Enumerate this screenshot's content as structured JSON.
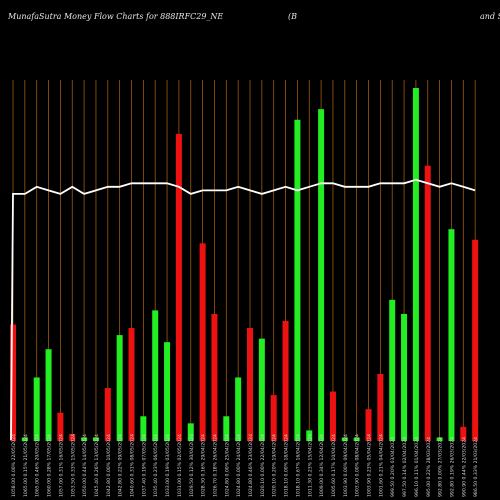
{
  "header": {
    "title": "MunafaSutra  Money Flow  Charts for 888IRFC29_NE",
    "middle": "(B",
    "right": "and S"
  },
  "chart_data": {
    "type": "bar",
    "title": "MunafaSutra  Money Flow  Charts for 888IRFC29_NE",
    "xlabel": "",
    "ylabel": "",
    "ylim": [
      0,
      100
    ],
    "grid": true,
    "colors": {
      "up": "#22ee22",
      "down": "#ee1111",
      "line": "#ffffff",
      "grid": "#a05a10",
      "background": "#000000"
    },
    "bars": [
      {
        "date": "1058.00 0.00% 22/05/2024",
        "value": 33,
        "color": "down"
      },
      {
        "date": "1065.00 0.15% 21/05/2024",
        "value": 1,
        "color": "up"
      },
      {
        "date": "1065.00 0.46% 20/05/2024",
        "value": 18,
        "color": "up"
      },
      {
        "date": "1060.00 0.28% 17/05/2024",
        "value": 26,
        "color": "up"
      },
      {
        "date": "1057.00 0.31% 16/05/2024",
        "value": 8,
        "color": "down"
      },
      {
        "date": "1053.50 0.33% 15/05/2024",
        "value": 2,
        "color": "down"
      },
      {
        "date": "1050.00 0.44% 14/05/2024",
        "value": 1,
        "color": "up"
      },
      {
        "date": "1045.40 0.26% 13/05/2024",
        "value": 1,
        "color": "up"
      },
      {
        "date": "1042.80 0.00% 10/05/2024",
        "value": 15,
        "color": "down"
      },
      {
        "date": "1042.80 0.22% 09/05/2024",
        "value": 30,
        "color": "up"
      },
      {
        "date": "1040.60 0.31% 08/05/2024",
        "value": 32,
        "color": "down"
      },
      {
        "date": "1037.40 0.19% 07/05/2024",
        "value": 7,
        "color": "up"
      },
      {
        "date": "1035.40 0.23% 06/05/2024",
        "value": 37,
        "color": "up"
      },
      {
        "date": "1033.00 0.19% 03/05/2024",
        "value": 28,
        "color": "up"
      },
      {
        "date": "1031.00 0.15% 02/05/2024",
        "value": 87,
        "color": "down"
      },
      {
        "date": "1029.50 0.12% 30/04/2024",
        "value": 5,
        "color": "up"
      },
      {
        "date": "1028.30 0.16% 29/04/2024",
        "value": 56,
        "color": "down"
      },
      {
        "date": "1026.70 0.18% 26/04/2024",
        "value": 36,
        "color": "down"
      },
      {
        "date": "1024.80 0.00% 25/04/2024",
        "value": 7,
        "color": "up"
      },
      {
        "date": "1024.80 0.00% 24/04/2024",
        "value": 18,
        "color": "up"
      },
      {
        "date": "1024.80 0.46% 23/04/2024",
        "value": 32,
        "color": "down"
      },
      {
        "date": "1020.10 0.00% 22/04/2024",
        "value": 29,
        "color": "up"
      },
      {
        "date": "1020.10 0.20% 19/04/2024",
        "value": 13,
        "color": "down"
      },
      {
        "date": "1018.10 0.00% 18/04/2024",
        "value": 34,
        "color": "down"
      },
      {
        "date": "1018.10 0.67% 16/04/2024",
        "value": 91,
        "color": "up"
      },
      {
        "date": "1011.30 0.23% 15/04/2024",
        "value": 3,
        "color": "up"
      },
      {
        "date": "1009.00 0.34% 12/04/2024",
        "value": 94,
        "color": "up"
      },
      {
        "date": "1005.60 0.17% 10/04/2024",
        "value": 14,
        "color": "down"
      },
      {
        "date": "1003.90 0.00% 09/04/2024",
        "value": 1,
        "color": "up"
      },
      {
        "date": "1003.90 0.00% 08/04/2024",
        "value": 1,
        "color": "up"
      },
      {
        "date": "1003.90 0.23% 05/04/2024",
        "value": 9,
        "color": "down"
      },
      {
        "date": "1001.60 0.21% 04/04/2024",
        "value": 19,
        "color": "down"
      },
      {
        "date": "999.50 0.20% 03/04/2024",
        "value": 40,
        "color": "up"
      },
      {
        "date": "997.50 0.14% 02/04/2024",
        "value": 36,
        "color": "up"
      },
      {
        "date": "996.10 0.11% 01/04/2024",
        "value": 100,
        "color": "up"
      },
      {
        "date": "995.00 0.22% 28/03/2024",
        "value": 78,
        "color": "down"
      },
      {
        "date": "992.80 0.00% 27/03/2024",
        "value": 1,
        "color": "up"
      },
      {
        "date": "992.80 0.19% 26/03/2024",
        "value": 60,
        "color": "up"
      },
      {
        "date": "990.90 0.44% 22/03/2024",
        "value": 4,
        "color": "down"
      },
      {
        "date": "986.50 0.33% 21/03/2024",
        "value": 57,
        "color": "down"
      }
    ],
    "line": [
      70,
      70,
      72,
      71,
      70,
      72,
      70,
      71,
      72,
      72,
      73,
      73,
      73,
      73,
      72,
      70,
      71,
      71,
      71,
      72,
      71,
      70,
      71,
      72,
      71,
      72,
      73,
      73,
      72,
      72,
      72,
      73,
      73,
      73,
      74,
      73,
      72,
      73,
      72,
      71
    ]
  }
}
